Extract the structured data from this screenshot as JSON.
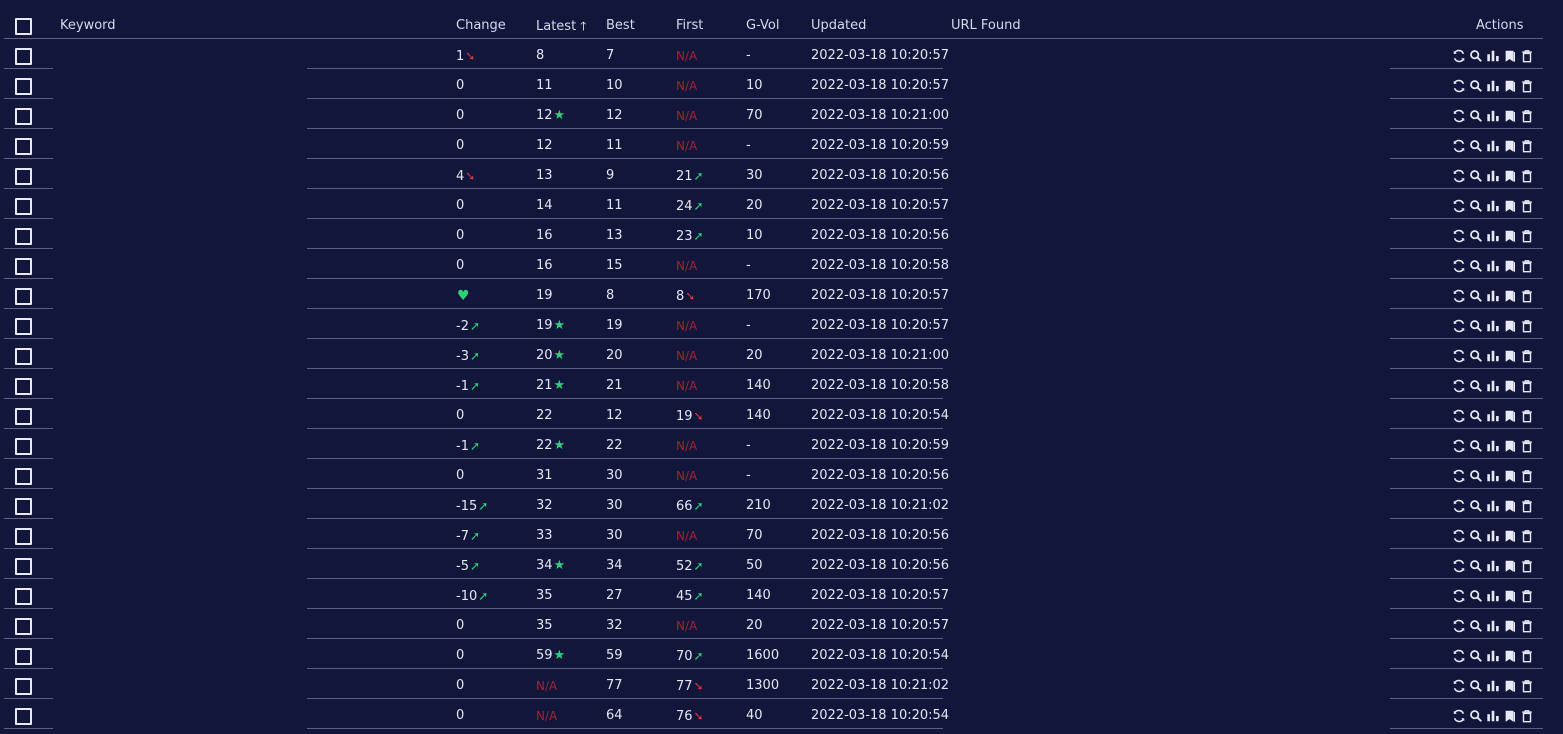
{
  "header": {
    "keyword": "Keyword",
    "change": "Change",
    "latest": "Latest",
    "best": "Best",
    "first": "First",
    "gvol": "G-Vol",
    "updated": "Updated",
    "url_found": "URL Found",
    "actions": "Actions"
  },
  "colors": {
    "background": "#11163a",
    "text": "#e4e6f2",
    "positive": "#2fcf7a",
    "negative": "#e0333a",
    "na": "#a3242e",
    "divider": "#596081"
  },
  "action_icons": [
    "refresh-icon",
    "search-icon",
    "chart-bars-icon",
    "bookmark-icon",
    "trash-icon"
  ],
  "rows": [
    {
      "change": "1",
      "change_trend": "down",
      "latest": "8",
      "latest_mark": "",
      "best": "7",
      "first": "N/A",
      "first_trend": "",
      "gvol": "-",
      "updated": "2022-03-18 10:20:57"
    },
    {
      "change": "0",
      "change_trend": "",
      "latest": "11",
      "latest_mark": "",
      "best": "10",
      "first": "N/A",
      "first_trend": "",
      "gvol": "10",
      "updated": "2022-03-18 10:20:57"
    },
    {
      "change": "0",
      "change_trend": "",
      "latest": "12",
      "latest_mark": "star",
      "best": "12",
      "first": "N/A",
      "first_trend": "",
      "gvol": "70",
      "updated": "2022-03-18 10:21:00"
    },
    {
      "change": "0",
      "change_trend": "",
      "latest": "12",
      "latest_mark": "",
      "best": "11",
      "first": "N/A",
      "first_trend": "",
      "gvol": "-",
      "updated": "2022-03-18 10:20:59"
    },
    {
      "change": "4",
      "change_trend": "down",
      "latest": "13",
      "latest_mark": "",
      "best": "9",
      "first": "21",
      "first_trend": "up",
      "gvol": "30",
      "updated": "2022-03-18 10:20:56"
    },
    {
      "change": "0",
      "change_trend": "",
      "latest": "14",
      "latest_mark": "",
      "best": "11",
      "first": "24",
      "first_trend": "up",
      "gvol": "20",
      "updated": "2022-03-18 10:20:57"
    },
    {
      "change": "0",
      "change_trend": "",
      "latest": "16",
      "latest_mark": "",
      "best": "13",
      "first": "23",
      "first_trend": "up",
      "gvol": "10",
      "updated": "2022-03-18 10:20:56"
    },
    {
      "change": "0",
      "change_trend": "",
      "latest": "16",
      "latest_mark": "",
      "best": "15",
      "first": "N/A",
      "first_trend": "",
      "gvol": "-",
      "updated": "2022-03-18 10:20:58"
    },
    {
      "change": "",
      "change_trend": "heart",
      "latest": "19",
      "latest_mark": "",
      "best": "8",
      "first": "8",
      "first_trend": "down",
      "gvol": "170",
      "updated": "2022-03-18 10:20:57"
    },
    {
      "change": "-2",
      "change_trend": "up",
      "latest": "19",
      "latest_mark": "star",
      "best": "19",
      "first": "N/A",
      "first_trend": "",
      "gvol": "-",
      "updated": "2022-03-18 10:20:57"
    },
    {
      "change": "-3",
      "change_trend": "up",
      "latest": "20",
      "latest_mark": "star",
      "best": "20",
      "first": "N/A",
      "first_trend": "",
      "gvol": "20",
      "updated": "2022-03-18 10:21:00"
    },
    {
      "change": "-1",
      "change_trend": "up",
      "latest": "21",
      "latest_mark": "star",
      "best": "21",
      "first": "N/A",
      "first_trend": "",
      "gvol": "140",
      "updated": "2022-03-18 10:20:58"
    },
    {
      "change": "0",
      "change_trend": "",
      "latest": "22",
      "latest_mark": "",
      "best": "12",
      "first": "19",
      "first_trend": "down",
      "gvol": "140",
      "updated": "2022-03-18 10:20:54"
    },
    {
      "change": "-1",
      "change_trend": "up",
      "latest": "22",
      "latest_mark": "star",
      "best": "22",
      "first": "N/A",
      "first_trend": "",
      "gvol": "-",
      "updated": "2022-03-18 10:20:59"
    },
    {
      "change": "0",
      "change_trend": "",
      "latest": "31",
      "latest_mark": "",
      "best": "30",
      "first": "N/A",
      "first_trend": "",
      "gvol": "-",
      "updated": "2022-03-18 10:20:56"
    },
    {
      "change": "-15",
      "change_trend": "up",
      "latest": "32",
      "latest_mark": "",
      "best": "30",
      "first": "66",
      "first_trend": "up",
      "gvol": "210",
      "updated": "2022-03-18 10:21:02"
    },
    {
      "change": "-7",
      "change_trend": "up",
      "latest": "33",
      "latest_mark": "",
      "best": "30",
      "first": "N/A",
      "first_trend": "",
      "gvol": "70",
      "updated": "2022-03-18 10:20:56"
    },
    {
      "change": "-5",
      "change_trend": "up",
      "latest": "34",
      "latest_mark": "star",
      "best": "34",
      "first": "52",
      "first_trend": "up",
      "gvol": "50",
      "updated": "2022-03-18 10:20:56"
    },
    {
      "change": "-10",
      "change_trend": "up",
      "latest": "35",
      "latest_mark": "",
      "best": "27",
      "first": "45",
      "first_trend": "up",
      "gvol": "140",
      "updated": "2022-03-18 10:20:57"
    },
    {
      "change": "0",
      "change_trend": "",
      "latest": "35",
      "latest_mark": "",
      "best": "32",
      "first": "N/A",
      "first_trend": "",
      "gvol": "20",
      "updated": "2022-03-18 10:20:57"
    },
    {
      "change": "0",
      "change_trend": "",
      "latest": "59",
      "latest_mark": "star",
      "best": "59",
      "first": "70",
      "first_trend": "up",
      "gvol": "1600",
      "updated": "2022-03-18 10:20:54"
    },
    {
      "change": "0",
      "change_trend": "",
      "latest": "N/A",
      "latest_mark": "",
      "best": "77",
      "first": "77",
      "first_trend": "down",
      "gvol": "1300",
      "updated": "2022-03-18 10:21:02"
    },
    {
      "change": "0",
      "change_trend": "",
      "latest": "N/A",
      "latest_mark": "",
      "best": "64",
      "first": "76",
      "first_trend": "down",
      "gvol": "40",
      "updated": "2022-03-18 10:20:54"
    }
  ]
}
